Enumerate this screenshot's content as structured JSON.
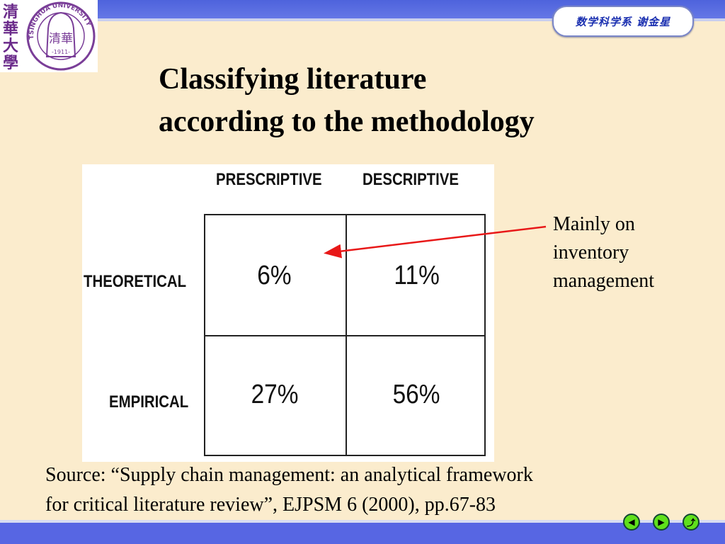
{
  "header": {
    "badge_text": "数学科学系  谢金星"
  },
  "logo": {
    "vertical_text": "清華大學",
    "ring_text": "TSINGHUA UNIVERSITY",
    "year": "1911",
    "center": "清華"
  },
  "title": {
    "line1": "Classifying literature",
    "line2": "according to the methodology"
  },
  "table": {
    "columns": [
      "PRESCRIPTIVE",
      "DESCRIPTIVE"
    ],
    "rows": [
      {
        "label": "THEORETICAL",
        "values": [
          "6%",
          "11%"
        ]
      },
      {
        "label": "EMPIRICAL",
        "values": [
          "27%",
          "56%"
        ]
      }
    ]
  },
  "annotation": {
    "lines": [
      "Mainly on",
      "inventory",
      "management"
    ],
    "arrow_color": "#e81818"
  },
  "source": {
    "line1": "Source: “Supply chain management: an analytical framework",
    "line2": "for critical literature review”, EJPSM 6 (2000), pp.67-83"
  },
  "nav": {
    "prev": "previous-icon",
    "next": "next-icon",
    "return": "return-icon",
    "color": "#5fe01c"
  }
}
